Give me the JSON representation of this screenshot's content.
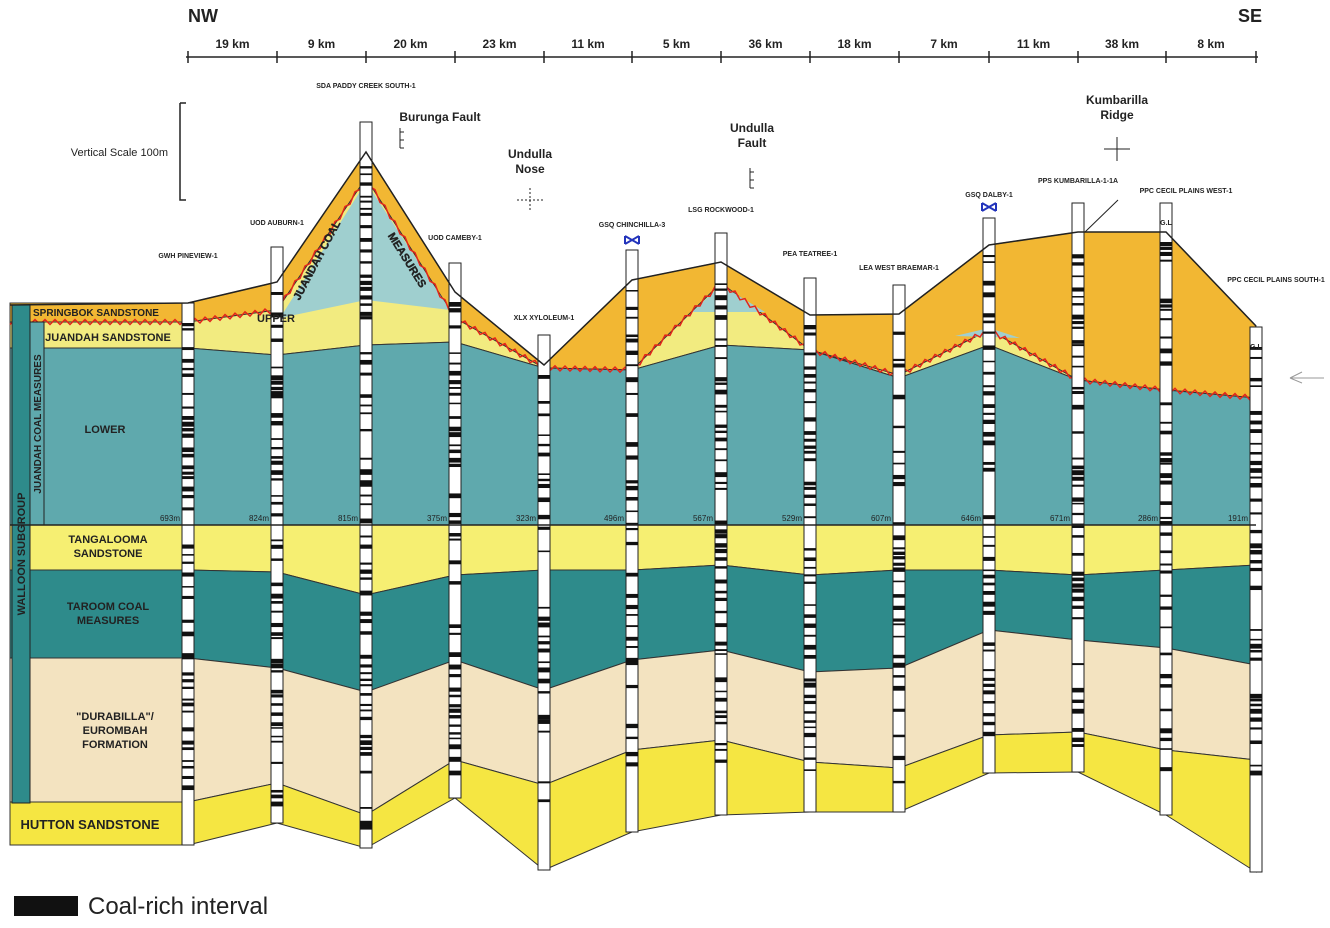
{
  "directions": {
    "left": "NW",
    "right": "SE"
  },
  "distances": [
    "19 km",
    "9 km",
    "20 km",
    "23 km",
    "11 km",
    "5 km",
    "36 km",
    "18 km",
    "7 km",
    "11 km",
    "38 km",
    "8 km"
  ],
  "vertical_scale": "Vertical Scale 100m",
  "wells": [
    {
      "name": "GWH PINEVIEW-1",
      "depth": "693m"
    },
    {
      "name": "UOD AUBURN-1",
      "depth": "824m"
    },
    {
      "name": "SDA PADDY CREEK SOUTH-1",
      "depth": "815m"
    },
    {
      "name": "UOD CAMEBY-1",
      "depth": "375m"
    },
    {
      "name": "XLX XYLOLEUM-1",
      "depth": "323m"
    },
    {
      "name": "GSQ CHINCHILLA-3",
      "depth": "496m"
    },
    {
      "name": "LSG ROCKWOOD-1",
      "depth": "567m"
    },
    {
      "name": "PEA TEATREE-1",
      "depth": "529m"
    },
    {
      "name": "LEA WEST BRAEMAR-1",
      "depth": "607m"
    },
    {
      "name": "GSQ DALBY-1",
      "depth": "646m"
    },
    {
      "name": "PPS KUMBARILLA-1-1A",
      "depth": "671m"
    },
    {
      "name": "PPC CECIL PLAINS WEST-1",
      "depth": "286m",
      "datum": "G.L"
    },
    {
      "name": "PPC CECIL PLAINS SOUTH-1",
      "depth": "191m",
      "datum": "G.L"
    }
  ],
  "structures": [
    {
      "lines": [
        "Burunga Fault"
      ]
    },
    {
      "lines": [
        "Undulla",
        "Nose"
      ]
    },
    {
      "lines": [
        "Undulla",
        "Fault"
      ]
    },
    {
      "lines": [
        "Kumbarilla",
        "Ridge"
      ]
    }
  ],
  "units": [
    {
      "lines": [
        "SPRINGBOK SANDSTONE"
      ]
    },
    {
      "lines": [
        "JUANDAH SANDSTONE"
      ]
    },
    {
      "lines": [
        "UPPER"
      ]
    },
    {
      "lines": [
        "JUANDAH COAL"
      ]
    },
    {
      "lines": [
        "MEASURES"
      ]
    },
    {
      "lines": [
        "LOWER"
      ]
    },
    {
      "lines": [
        "TANGALOOMA",
        "SANDSTONE"
      ]
    },
    {
      "lines": [
        "TAROOM COAL",
        "MEASURES"
      ]
    },
    {
      "lines": [
        "\"DURABILLA\"/",
        "EUROMBAH",
        "FORMATION"
      ]
    },
    {
      "lines": [
        "HUTTON SANDSTONE"
      ]
    }
  ],
  "side_labels": {
    "juandah": "JUANDAH COAL MEASURES",
    "walloon": "WALLOON SUBGROUP"
  },
  "legend": "Coal-rich interval"
}
